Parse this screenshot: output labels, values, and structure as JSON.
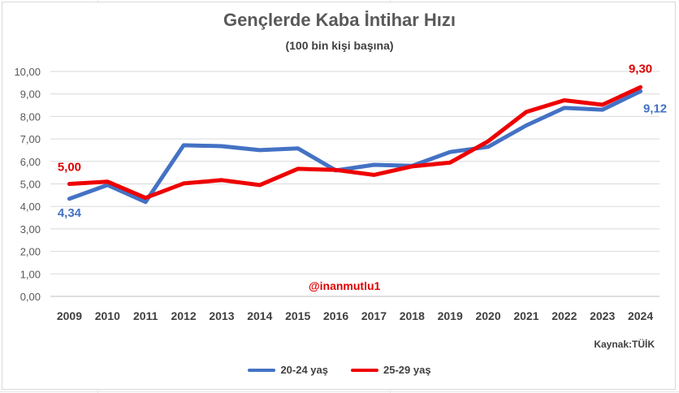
{
  "chart_data": {
    "type": "line",
    "title": "Gençlerde Kaba İntihar Hızı",
    "subtitle": "(100 bin kişi başına)",
    "categories": [
      "2009",
      "2010",
      "2011",
      "2012",
      "2013",
      "2014",
      "2015",
      "2016",
      "2017",
      "2018",
      "2019",
      "2020",
      "2021",
      "2022",
      "2023",
      "2024"
    ],
    "series": [
      {
        "name": "20-24 yaş",
        "color": "#4472c4",
        "values": [
          4.34,
          4.95,
          4.2,
          6.72,
          6.68,
          6.5,
          6.58,
          5.6,
          5.85,
          5.8,
          6.42,
          6.65,
          7.6,
          8.38,
          8.3,
          9.12
        ],
        "labels": [
          "4,34",
          "",
          "",
          "",
          "",
          "",
          "",
          "",
          "",
          "",
          "",
          "",
          "",
          "",
          "",
          "9,12"
        ]
      },
      {
        "name": "25-29 yaş",
        "color": "#ee0000",
        "values": [
          5.0,
          5.1,
          4.38,
          5.02,
          5.17,
          4.95,
          5.67,
          5.62,
          5.4,
          5.78,
          5.95,
          6.9,
          8.2,
          8.72,
          8.52,
          9.3
        ],
        "labels": [
          "5,00",
          "",
          "",
          "",
          "",
          "",
          "",
          "",
          "",
          "",
          "",
          "",
          "",
          "",
          "",
          "9,30"
        ]
      }
    ],
    "yticks": [
      "0,00",
      "1,00",
      "2,00",
      "3,00",
      "4,00",
      "5,00",
      "6,00",
      "7,00",
      "8,00",
      "9,00",
      "10,00"
    ],
    "ylim": [
      0,
      10
    ],
    "grid": true,
    "legend": "bottom"
  },
  "annotations": {
    "watermark": "@inanmutlu1",
    "source": "Kaynak:TÜİK"
  }
}
